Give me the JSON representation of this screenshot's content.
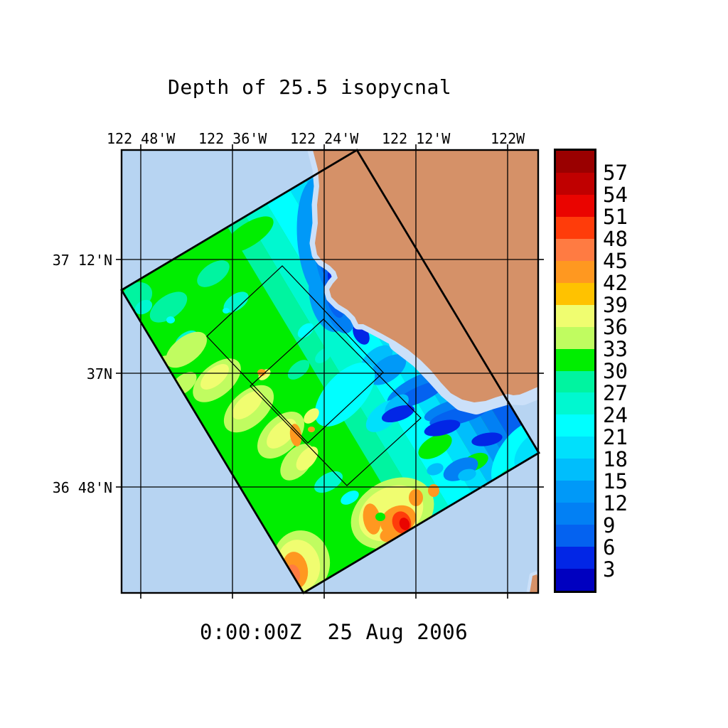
{
  "title": "Depth of 25.5 isopycnal",
  "caption": "0:00:00Z  25 Aug 2006",
  "axes": {
    "lon_ticks": [
      "122 48'W",
      "122 36'W",
      "122 24'W",
      "122 12'W",
      "122W"
    ],
    "lat_ticks": [
      "37 12'N",
      "37N",
      "36 48'N"
    ]
  },
  "colorbar": {
    "tick_labels": [
      "57",
      "54",
      "51",
      "48",
      "45",
      "42",
      "39",
      "36",
      "33",
      "30",
      "27",
      "24",
      "21",
      "18",
      "15",
      "12",
      "9",
      "6",
      "3"
    ],
    "segment_colors": [
      "#9A0000",
      "#C00000",
      "#EA0400",
      "#FF3C0A",
      "#FF7B42",
      "#FF9820",
      "#FFC200",
      "#F0FD70",
      "#C0FC60",
      "#00EE00",
      "#00F4A0",
      "#00F8D0",
      "#00FFFF",
      "#00E0FC",
      "#00BEFC",
      "#0099F8",
      "#0280F4",
      "#0462F0",
      "#0226E6",
      "#0000C0"
    ]
  },
  "map_colors": {
    "ocean": "#B7D4F2",
    "land": "#D59168",
    "coast_margin": "#CBE0F9",
    "grid": "#000000"
  },
  "chart_data": {
    "type": "heatmap",
    "subtype": "filled_contour_map",
    "title": "Depth of 25.5 isopycnal",
    "time_label": "0:00:00Z  25 Aug 2006",
    "x_tick_labels": [
      "122 48'W",
      "122 36'W",
      "122 24'W",
      "122 12'W",
      "122W"
    ],
    "y_tick_labels": [
      "37 12'N",
      "37N",
      "36 48'N"
    ],
    "colorbar_tick_values": [
      57,
      54,
      51,
      48,
      45,
      42,
      39,
      36,
      33,
      30,
      27,
      24,
      21,
      18,
      15,
      12,
      9,
      6,
      3
    ],
    "colorbar_segment_colors": [
      "#9A0000",
      "#C00000",
      "#EA0400",
      "#FF3C0A",
      "#FF7B42",
      "#FF9820",
      "#FFC200",
      "#F0FD70",
      "#C0FC60",
      "#00EE00",
      "#00F4A0",
      "#00F8D0",
      "#00FFFF",
      "#00E0FC",
      "#00BEFC",
      "#0099F8",
      "#0280F4",
      "#0462F0",
      "#0226E6",
      "#0000C0"
    ],
    "legend_position": "right",
    "grid": true,
    "land_color": "#D59168",
    "ocean_color": "#B7D4F2",
    "nested_domain_outlines": 3
  }
}
